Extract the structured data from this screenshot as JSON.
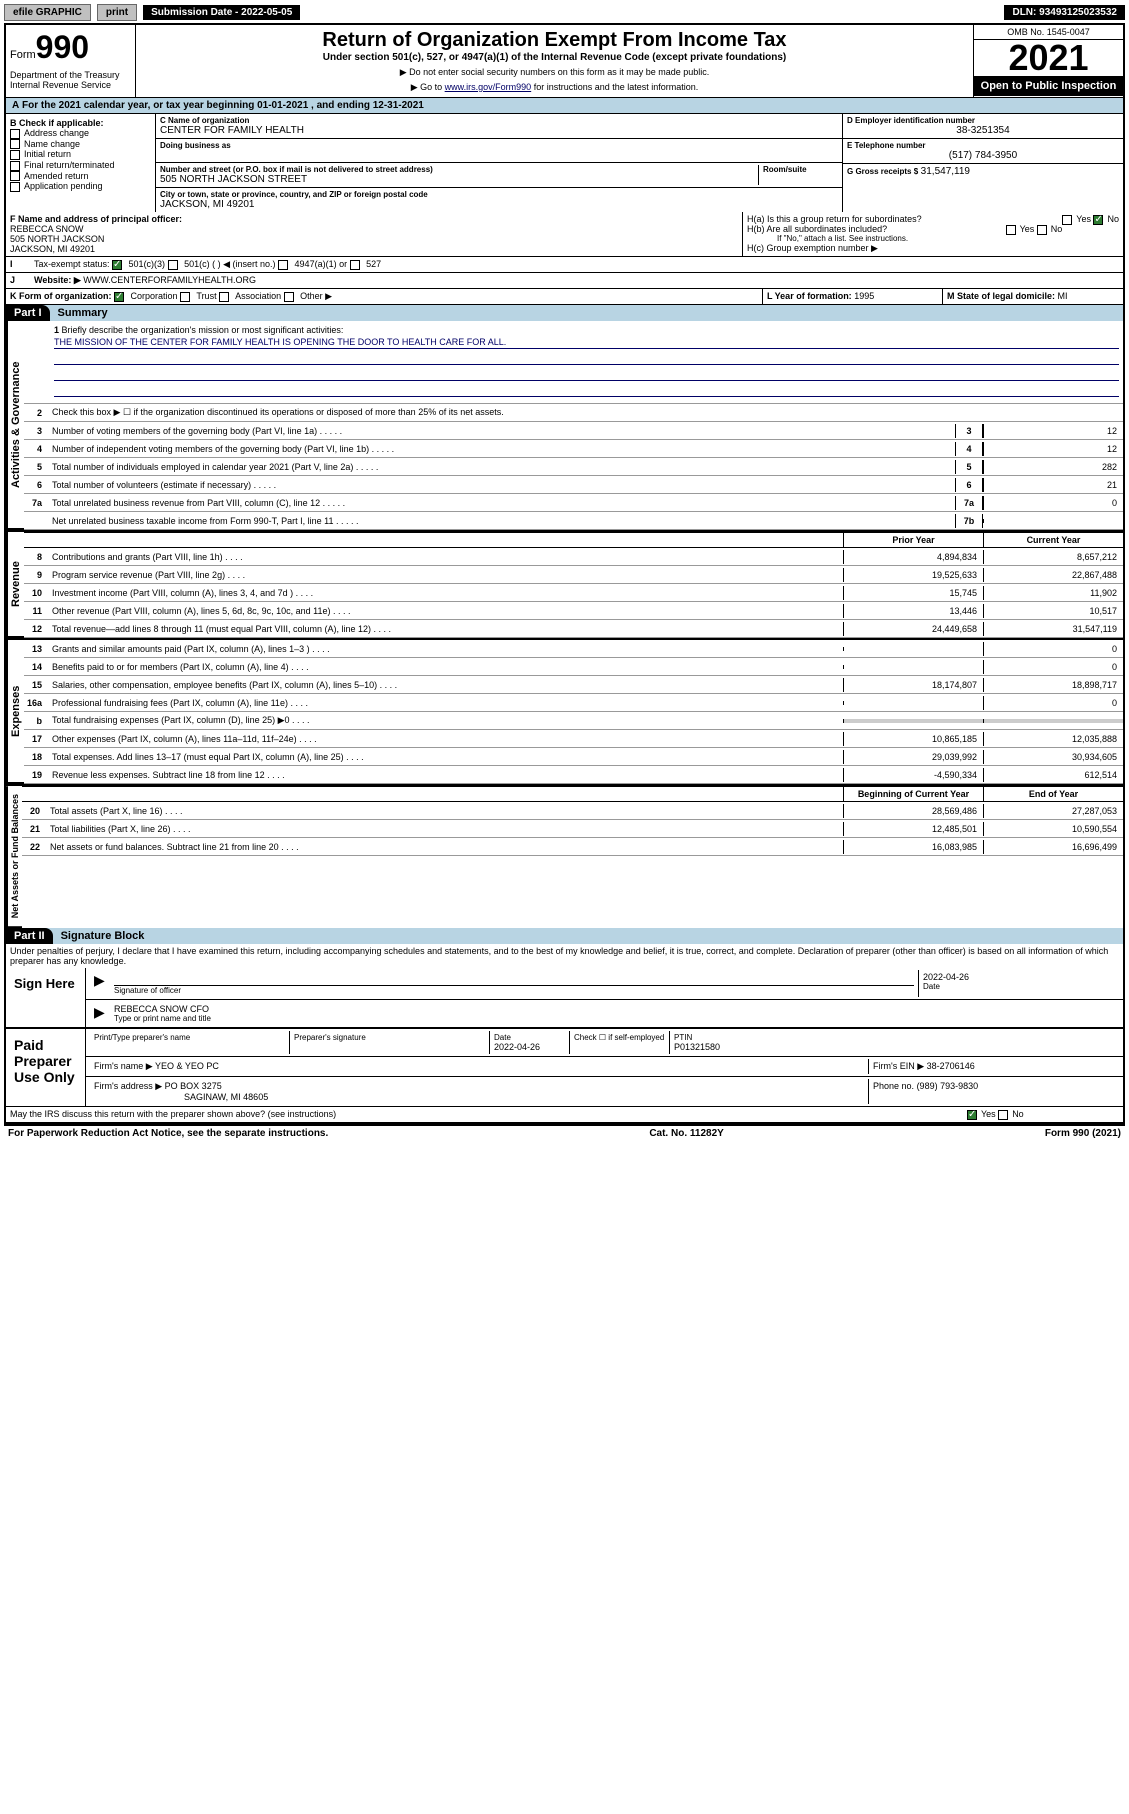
{
  "topbar": {
    "efile": "efile GRAPHIC",
    "print": "print",
    "subdate_label": "Submission Date - 2022-05-05",
    "dln": "DLN: 93493125023532"
  },
  "header": {
    "form_label": "Form",
    "form_num": "990",
    "title": "Return of Organization Exempt From Income Tax",
    "subtitle": "Under section 501(c), 527, or 4947(a)(1) of the Internal Revenue Code (except private foundations)",
    "note1": "▶ Do not enter social security numbers on this form as it may be made public.",
    "note2_prefix": "▶ Go to ",
    "note2_link": "www.irs.gov/Form990",
    "note2_suffix": " for instructions and the latest information.",
    "omb": "OMB No. 1545-0047",
    "year": "2021",
    "open": "Open to Public Inspection",
    "dept": "Department of the Treasury Internal Revenue Service"
  },
  "calendar": "For the 2021 calendar year, or tax year beginning 01-01-2021   , and ending 12-31-2021",
  "box_b": {
    "label": "B Check if applicable:",
    "items": [
      "Address change",
      "Name change",
      "Initial return",
      "Final return/terminated",
      "Amended return",
      "Application pending"
    ]
  },
  "box_c": {
    "name_label": "C Name of organization",
    "name": "CENTER FOR FAMILY HEALTH",
    "dba_label": "Doing business as",
    "addr_label": "Number and street (or P.O. box if mail is not delivered to street address)",
    "room_label": "Room/suite",
    "addr": "505 NORTH JACKSON STREET",
    "city_label": "City or town, state or province, country, and ZIP or foreign postal code",
    "city": "JACKSON, MI  49201"
  },
  "box_d": {
    "label": "D Employer identification number",
    "ein": "38-3251354"
  },
  "box_e": {
    "label": "E Telephone number",
    "phone": "(517) 784-3950"
  },
  "box_g": {
    "label": "G Gross receipts $",
    "amount": "31,547,119"
  },
  "box_f": {
    "label": "F Name and address of principal officer:",
    "name": "REBECCA SNOW",
    "addr1": "505 NORTH JACKSON",
    "addr2": "JACKSON, MI  49201"
  },
  "box_h": {
    "a": "H(a)  Is this a group return for subordinates?",
    "b": "H(b)  Are all subordinates included?",
    "b_note": "If \"No,\" attach a list. See instructions.",
    "c": "H(c)  Group exemption number ▶"
  },
  "tax_status": {
    "label": "Tax-exempt status:",
    "opts": [
      "501(c)(3)",
      "501(c) (  ) ◀ (insert no.)",
      "4947(a)(1) or",
      "527"
    ]
  },
  "website": {
    "label": "Website: ▶",
    "url": "WWW.CENTERFORFAMILYHEALTH.ORG"
  },
  "box_k": {
    "label": "K Form of organization:",
    "opts": [
      "Corporation",
      "Trust",
      "Association",
      "Other ▶"
    ]
  },
  "box_l": {
    "label": "L Year of formation:",
    "val": "1995"
  },
  "box_m": {
    "label": "M State of legal domicile:",
    "val": "MI"
  },
  "part1": {
    "header": "Part I",
    "title": "Summary",
    "q1_label": "1",
    "q1": "Briefly describe the organization's mission or most significant activities:",
    "mission": "THE MISSION OF THE CENTER FOR FAMILY HEALTH IS OPENING THE DOOR TO HEALTH CARE FOR ALL.",
    "q2_label": "2",
    "q2": "Check this box ▶ ☐ if the organization discontinued its operations or disposed of more than 25% of its net assets."
  },
  "governance_label": "Activities & Governance",
  "revenue_label": "Revenue",
  "expenses_label": "Expenses",
  "netassets_label": "Net Assets or Fund Balances",
  "lines_gov": [
    {
      "n": "3",
      "t": "Number of voting members of the governing body (Part VI, line 1a)",
      "box": "3",
      "v": "12"
    },
    {
      "n": "4",
      "t": "Number of independent voting members of the governing body (Part VI, line 1b)",
      "box": "4",
      "v": "12"
    },
    {
      "n": "5",
      "t": "Total number of individuals employed in calendar year 2021 (Part V, line 2a)",
      "box": "5",
      "v": "282"
    },
    {
      "n": "6",
      "t": "Total number of volunteers (estimate if necessary)",
      "box": "6",
      "v": "21"
    },
    {
      "n": "7a",
      "t": "Total unrelated business revenue from Part VIII, column (C), line 12",
      "box": "7a",
      "v": "0"
    },
    {
      "n": "",
      "t": "Net unrelated business taxable income from Form 990-T, Part I, line 11",
      "box": "7b",
      "v": ""
    }
  ],
  "col_headers": {
    "prior": "Prior Year",
    "current": "Current Year"
  },
  "lines_rev": [
    {
      "n": "8",
      "t": "Contributions and grants (Part VIII, line 1h)",
      "p": "4,894,834",
      "c": "8,657,212"
    },
    {
      "n": "9",
      "t": "Program service revenue (Part VIII, line 2g)",
      "p": "19,525,633",
      "c": "22,867,488"
    },
    {
      "n": "10",
      "t": "Investment income (Part VIII, column (A), lines 3, 4, and 7d )",
      "p": "15,745",
      "c": "11,902"
    },
    {
      "n": "11",
      "t": "Other revenue (Part VIII, column (A), lines 5, 6d, 8c, 9c, 10c, and 11e)",
      "p": "13,446",
      "c": "10,517"
    },
    {
      "n": "12",
      "t": "Total revenue—add lines 8 through 11 (must equal Part VIII, column (A), line 12)",
      "p": "24,449,658",
      "c": "31,547,119"
    }
  ],
  "lines_exp": [
    {
      "n": "13",
      "t": "Grants and similar amounts paid (Part IX, column (A), lines 1–3 )",
      "p": "",
      "c": "0"
    },
    {
      "n": "14",
      "t": "Benefits paid to or for members (Part IX, column (A), line 4)",
      "p": "",
      "c": "0"
    },
    {
      "n": "15",
      "t": "Salaries, other compensation, employee benefits (Part IX, column (A), lines 5–10)",
      "p": "18,174,807",
      "c": "18,898,717"
    },
    {
      "n": "16a",
      "t": "Professional fundraising fees (Part IX, column (A), line 11e)",
      "p": "",
      "c": "0"
    },
    {
      "n": "b",
      "t": "Total fundraising expenses (Part IX, column (D), line 25) ▶0",
      "p": "",
      "c": "",
      "shaded": true
    },
    {
      "n": "17",
      "t": "Other expenses (Part IX, column (A), lines 11a–11d, 11f–24e)",
      "p": "10,865,185",
      "c": "12,035,888"
    },
    {
      "n": "18",
      "t": "Total expenses. Add lines 13–17 (must equal Part IX, column (A), line 25)",
      "p": "29,039,992",
      "c": "30,934,605"
    },
    {
      "n": "19",
      "t": "Revenue less expenses. Subtract line 18 from line 12",
      "p": "-4,590,334",
      "c": "612,514"
    }
  ],
  "col_headers2": {
    "begin": "Beginning of Current Year",
    "end": "End of Year"
  },
  "lines_na": [
    {
      "n": "20",
      "t": "Total assets (Part X, line 16)",
      "p": "28,569,486",
      "c": "27,287,053"
    },
    {
      "n": "21",
      "t": "Total liabilities (Part X, line 26)",
      "p": "12,485,501",
      "c": "10,590,554"
    },
    {
      "n": "22",
      "t": "Net assets or fund balances. Subtract line 21 from line 20",
      "p": "16,083,985",
      "c": "16,696,499"
    }
  ],
  "part2": {
    "header": "Part II",
    "title": "Signature Block",
    "decl": "Under penalties of perjury, I declare that I have examined this return, including accompanying schedules and statements, and to the best of my knowledge and belief, it is true, correct, and complete. Declaration of preparer (other than officer) is based on all information of which preparer has any knowledge."
  },
  "sign": {
    "here": "Sign Here",
    "sig_label": "Signature of officer",
    "date": "2022-04-26",
    "date_label": "Date",
    "name": "REBECCA SNOW CFO",
    "name_label": "Type or print name and title"
  },
  "paid": {
    "label": "Paid Preparer Use Only",
    "col1": "Print/Type preparer's name",
    "col2": "Preparer's signature",
    "col3": "Date",
    "date": "2022-04-26",
    "col4": "Check ☐ if self-employed",
    "col5": "PTIN",
    "ptin": "P01321580",
    "firm_name_label": "Firm's name    ▶",
    "firm_name": "YEO & YEO PC",
    "firm_ein_label": "Firm's EIN ▶",
    "firm_ein": "38-2706146",
    "firm_addr_label": "Firm's address ▶",
    "firm_addr1": "PO BOX 3275",
    "firm_addr2": "SAGINAW, MI  48605",
    "phone_label": "Phone no.",
    "phone": "(989) 793-9830"
  },
  "may_irs": "May the IRS discuss this return with the preparer shown above? (see instructions)",
  "footer": {
    "left": "For Paperwork Reduction Act Notice, see the separate instructions.",
    "mid": "Cat. No. 11282Y",
    "right": "Form 990 (2021)"
  }
}
